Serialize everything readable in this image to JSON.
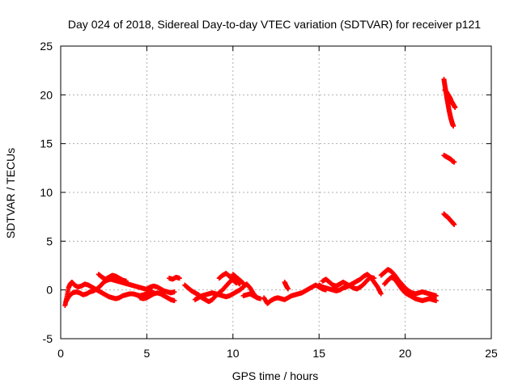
{
  "chart_data": {
    "type": "scatter",
    "title": "Day 024 of 2018, Sidereal Day-to-day VTEC variation (SDTVAR) for receiver p121",
    "xlabel": "GPS time / hours",
    "ylabel": "SDTVAR / TECUs",
    "xlim": [
      0,
      25
    ],
    "ylim": [
      -5,
      25
    ],
    "xticks": [
      0,
      5,
      10,
      15,
      20,
      25
    ],
    "yticks": [
      -5,
      0,
      5,
      10,
      15,
      20,
      25
    ],
    "grid": true,
    "marker": "plus",
    "series": [
      {
        "name": "SDTVAR",
        "color": "#ff0000",
        "segments": [
          [
            [
              0.25,
              -1.6
            ],
            [
              0.35,
              -0.8
            ],
            [
              0.45,
              0.2
            ],
            [
              0.55,
              0.6
            ],
            [
              0.65,
              0.8
            ],
            [
              0.8,
              0.5
            ],
            [
              1.0,
              0.3
            ],
            [
              1.2,
              0.4
            ],
            [
              1.4,
              0.6
            ],
            [
              1.6,
              0.5
            ],
            [
              1.8,
              0.3
            ],
            [
              2.0,
              0.1
            ],
            [
              2.2,
              -0.1
            ],
            [
              2.4,
              -0.3
            ],
            [
              2.6,
              -0.5
            ],
            [
              2.8,
              -0.7
            ],
            [
              3.0,
              -0.8
            ],
            [
              3.2,
              -0.9
            ],
            [
              3.4,
              -0.8
            ],
            [
              3.6,
              -0.6
            ],
            [
              3.8,
              -0.5
            ],
            [
              4.0,
              -0.4
            ],
            [
              4.2,
              -0.4
            ],
            [
              4.4,
              -0.5
            ],
            [
              4.6,
              -0.6
            ],
            [
              4.8,
              -0.5
            ],
            [
              5.0,
              -0.4
            ],
            [
              5.2,
              -0.3
            ]
          ],
          [
            [
              0.3,
              -1.2
            ],
            [
              0.5,
              -0.6
            ],
            [
              0.7,
              -0.3
            ],
            [
              0.9,
              -0.2
            ],
            [
              1.1,
              -0.3
            ],
            [
              1.3,
              -0.5
            ],
            [
              1.5,
              -0.4
            ],
            [
              1.7,
              -0.2
            ],
            [
              1.9,
              -0.1
            ],
            [
              2.1,
              0.1
            ],
            [
              2.3,
              0.4
            ],
            [
              2.5,
              0.8
            ],
            [
              2.7,
              1.0
            ],
            [
              2.9,
              1.1
            ],
            [
              3.1,
              1.0
            ],
            [
              3.3,
              0.9
            ],
            [
              3.5,
              0.8
            ],
            [
              3.7,
              0.7
            ],
            [
              3.9,
              0.6
            ],
            [
              4.1,
              0.5
            ],
            [
              4.3,
              0.4
            ],
            [
              4.5,
              0.3
            ],
            [
              4.7,
              0.2
            ],
            [
              4.9,
              0.1
            ],
            [
              5.1,
              0.0
            ],
            [
              5.3,
              -0.1
            ]
          ],
          [
            [
              2.2,
              1.6
            ],
            [
              2.4,
              1.3
            ],
            [
              2.6,
              1.1
            ],
            [
              2.8,
              1.3
            ],
            [
              3.0,
              1.5
            ],
            [
              3.2,
              1.4
            ],
            [
              3.4,
              1.2
            ],
            [
              3.6,
              1.0
            ],
            [
              3.8,
              0.9
            ]
          ],
          [
            [
              5.0,
              0.1
            ],
            [
              5.2,
              0.3
            ],
            [
              5.4,
              0.4
            ],
            [
              5.6,
              0.3
            ],
            [
              5.8,
              0.1
            ],
            [
              6.0,
              -0.1
            ],
            [
              6.2,
              -0.2
            ],
            [
              6.4,
              -0.3
            ],
            [
              6.6,
              -0.2
            ]
          ],
          [
            [
              4.6,
              -0.8
            ],
            [
              4.8,
              -0.9
            ],
            [
              5.0,
              -0.8
            ],
            [
              5.2,
              -0.6
            ],
            [
              5.4,
              -0.4
            ],
            [
              5.6,
              -0.3
            ],
            [
              5.8,
              -0.4
            ],
            [
              6.0,
              -0.6
            ],
            [
              6.2,
              -0.8
            ],
            [
              6.4,
              -1.0
            ],
            [
              6.6,
              -1.1
            ]
          ],
          [
            [
              6.3,
              1.2
            ],
            [
              6.5,
              1.1
            ],
            [
              6.7,
              1.3
            ],
            [
              6.9,
              1.2
            ]
          ],
          [
            [
              7.2,
              0.5
            ],
            [
              7.4,
              0.2
            ],
            [
              7.6,
              -0.1
            ],
            [
              7.8,
              -0.3
            ],
            [
              8.0,
              -0.5
            ],
            [
              8.2,
              -0.8
            ],
            [
              8.4,
              -1.0
            ],
            [
              8.6,
              -1.2
            ],
            [
              8.8,
              -1.0
            ],
            [
              9.0,
              -0.6
            ],
            [
              9.2,
              -0.3
            ],
            [
              9.4,
              0.0
            ],
            [
              9.6,
              0.4
            ],
            [
              9.8,
              0.8
            ],
            [
              10.0,
              1.1
            ],
            [
              10.2,
              0.9
            ],
            [
              10.4,
              0.6
            ]
          ],
          [
            [
              7.8,
              -1.0
            ],
            [
              8.0,
              -0.8
            ],
            [
              8.2,
              -0.6
            ],
            [
              8.4,
              -0.5
            ],
            [
              8.6,
              -0.4
            ],
            [
              8.8,
              -0.3
            ],
            [
              9.0,
              -0.4
            ],
            [
              9.2,
              -0.5
            ],
            [
              9.4,
              -0.6
            ],
            [
              9.6,
              -0.7
            ],
            [
              9.8,
              -0.6
            ],
            [
              10.0,
              -0.4
            ],
            [
              10.2,
              -0.2
            ],
            [
              10.4,
              0.0
            ],
            [
              10.6,
              0.3
            ],
            [
              10.8,
              0.6
            ],
            [
              11.0,
              0.2
            ],
            [
              11.2,
              -0.4
            ],
            [
              11.4,
              -0.8
            ]
          ],
          [
            [
              9.2,
              1.2
            ],
            [
              9.4,
              1.5
            ],
            [
              9.6,
              1.7
            ],
            [
              9.8,
              1.4
            ],
            [
              10.0,
              1.0
            ],
            [
              10.2,
              0.7
            ]
          ],
          [
            [
              10.0,
              1.6
            ],
            [
              10.2,
              1.3
            ],
            [
              10.4,
              1.0
            ],
            [
              10.6,
              0.7
            ]
          ],
          [
            [
              10.6,
              -0.6
            ],
            [
              10.8,
              -0.5
            ],
            [
              11.0,
              -0.4
            ],
            [
              11.2,
              -0.6
            ],
            [
              11.4,
              -0.8
            ],
            [
              11.6,
              -0.9
            ]
          ],
          [
            [
              11.8,
              -0.8
            ],
            [
              12.0,
              -1.4
            ],
            [
              12.2,
              -1.1
            ],
            [
              12.4,
              -0.9
            ],
            [
              12.6,
              -0.8
            ],
            [
              12.8,
              -0.9
            ],
            [
              13.0,
              -1.0
            ],
            [
              13.2,
              -0.8
            ],
            [
              13.4,
              -0.6
            ],
            [
              13.6,
              -0.5
            ],
            [
              13.8,
              -0.4
            ],
            [
              14.0,
              -0.3
            ],
            [
              14.2,
              -0.1
            ],
            [
              14.4,
              0.1
            ],
            [
              14.6,
              0.3
            ],
            [
              14.8,
              0.5
            ],
            [
              15.0,
              0.3
            ],
            [
              15.2,
              0.1
            ],
            [
              15.4,
              0.0
            ]
          ],
          [
            [
              13.0,
              0.8
            ],
            [
              13.1,
              0.4
            ],
            [
              13.2,
              0.1
            ]
          ],
          [
            [
              15.2,
              0.9
            ],
            [
              15.4,
              1.1
            ],
            [
              15.6,
              0.8
            ],
            [
              15.8,
              0.5
            ],
            [
              16.0,
              0.4
            ],
            [
              16.2,
              0.6
            ],
            [
              16.4,
              0.8
            ],
            [
              16.6,
              0.6
            ],
            [
              16.8,
              0.4
            ],
            [
              17.0,
              0.2
            ],
            [
              17.2,
              0.1
            ],
            [
              17.4,
              0.3
            ],
            [
              17.6,
              0.6
            ],
            [
              17.8,
              1.0
            ],
            [
              18.0,
              1.3
            ],
            [
              18.2,
              1.2
            ]
          ],
          [
            [
              15.0,
              0.5
            ],
            [
              15.2,
              0.3
            ],
            [
              15.4,
              0.2
            ],
            [
              15.6,
              0.1
            ],
            [
              15.8,
              0.0
            ],
            [
              16.0,
              -0.1
            ],
            [
              16.2,
              0.0
            ],
            [
              16.4,
              0.2
            ],
            [
              16.6,
              0.3
            ],
            [
              16.8,
              0.5
            ],
            [
              17.0,
              0.7
            ],
            [
              17.2,
              0.9
            ],
            [
              17.4,
              1.1
            ],
            [
              17.6,
              1.4
            ],
            [
              17.8,
              1.6
            ],
            [
              18.0,
              1.3
            ],
            [
              18.2,
              0.8
            ],
            [
              18.4,
              0.3
            ],
            [
              18.6,
              -0.4
            ]
          ],
          [
            [
              18.6,
              1.5
            ],
            [
              18.8,
              1.8
            ],
            [
              19.0,
              2.1
            ],
            [
              19.2,
              1.9
            ],
            [
              19.4,
              1.5
            ],
            [
              19.6,
              1.0
            ],
            [
              19.8,
              0.6
            ],
            [
              20.0,
              0.2
            ],
            [
              20.2,
              -0.1
            ],
            [
              20.4,
              -0.3
            ],
            [
              20.6,
              -0.4
            ],
            [
              20.8,
              -0.3
            ],
            [
              21.0,
              -0.2
            ],
            [
              21.2,
              -0.3
            ],
            [
              21.4,
              -0.4
            ],
            [
              21.6,
              -0.5
            ],
            [
              21.8,
              -0.6
            ]
          ],
          [
            [
              18.8,
              0.6
            ],
            [
              19.0,
              1.0
            ],
            [
              19.2,
              1.3
            ],
            [
              19.4,
              1.1
            ],
            [
              19.6,
              0.6
            ],
            [
              19.8,
              0.1
            ],
            [
              20.0,
              -0.3
            ],
            [
              20.2,
              -0.5
            ],
            [
              20.4,
              -0.7
            ],
            [
              20.6,
              -0.9
            ],
            [
              20.8,
              -1.0
            ],
            [
              21.0,
              -1.1
            ],
            [
              21.2,
              -1.0
            ],
            [
              21.4,
              -0.9
            ],
            [
              21.6,
              -1.0
            ],
            [
              21.8,
              -1.1
            ]
          ],
          [
            [
              22.25,
              21.6
            ],
            [
              22.3,
              21.0
            ],
            [
              22.35,
              20.5
            ],
            [
              22.4,
              19.9
            ],
            [
              22.45,
              19.4
            ],
            [
              22.5,
              18.9
            ],
            [
              22.55,
              18.4
            ],
            [
              22.6,
              18.0
            ],
            [
              22.65,
              17.6
            ],
            [
              22.7,
              17.3
            ],
            [
              22.75,
              17.0
            ],
            [
              22.8,
              16.8
            ]
          ],
          [
            [
              22.3,
              20.5
            ],
            [
              22.4,
              20.3
            ],
            [
              22.5,
              20.0
            ],
            [
              22.6,
              19.7
            ],
            [
              22.7,
              19.3
            ],
            [
              22.8,
              19.0
            ],
            [
              22.9,
              18.7
            ]
          ],
          [
            [
              22.25,
              13.8
            ],
            [
              22.35,
              13.7
            ],
            [
              22.45,
              13.6
            ],
            [
              22.55,
              13.5
            ],
            [
              22.65,
              13.4
            ],
            [
              22.75,
              13.2
            ],
            [
              22.85,
              13.1
            ]
          ],
          [
            [
              22.25,
              7.8
            ],
            [
              22.35,
              7.6
            ],
            [
              22.45,
              7.5
            ],
            [
              22.55,
              7.3
            ],
            [
              22.65,
              7.1
            ],
            [
              22.75,
              6.9
            ],
            [
              22.85,
              6.7
            ]
          ]
        ]
      }
    ]
  }
}
